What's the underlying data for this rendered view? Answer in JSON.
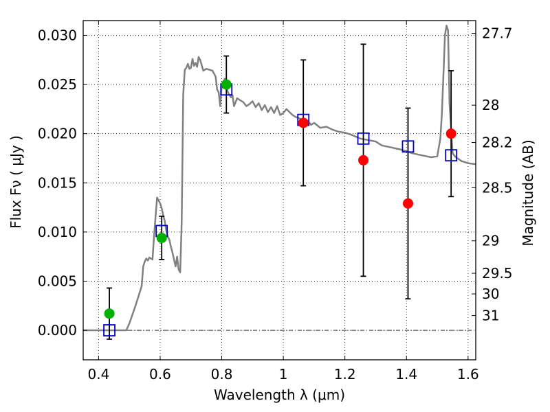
{
  "chart_data": {
    "type": "scatter",
    "xlabel": "Wavelength  λ (μm)",
    "ylabel": "Flux  Fν  ( μJy )",
    "ylabel_right": "Magnitude (AB)",
    "xlim": [
      0.35,
      1.625
    ],
    "ylim": [
      -0.003,
      0.0315
    ],
    "grid": true,
    "x_ticks": [
      0.4,
      0.6,
      0.8,
      1.0,
      1.2,
      1.4,
      1.6
    ],
    "x_tick_labels": [
      "0.4",
      "0.6",
      "0.8",
      "1",
      "1.2",
      "1.4",
      "1.6"
    ],
    "y_ticks": [
      0.0,
      0.005,
      0.01,
      0.015,
      0.02,
      0.025,
      0.03
    ],
    "y_tick_labels": [
      "0.000",
      "0.005",
      "0.010",
      "0.015",
      "0.020",
      "0.025",
      "0.030"
    ],
    "right_ticks": [
      {
        "label": "27.7",
        "flux": 0.0302
      },
      {
        "label": "28",
        "flux": 0.0229
      },
      {
        "label": "28.2",
        "flux": 0.0191
      },
      {
        "label": "28.5",
        "flux": 0.0145
      },
      {
        "label": "29",
        "flux": 0.0091
      },
      {
        "label": "29.5",
        "flux": 0.0058
      },
      {
        "label": "30",
        "flux": 0.0037
      },
      {
        "label": "31",
        "flux": 0.0015
      }
    ],
    "zero_line": 0.0,
    "colors": {
      "model": "#808080",
      "green": "#00b000",
      "red": "#ff0000",
      "square": "#0000cc",
      "errorbar": "#000000"
    },
    "model_spectrum": {
      "x": [
        0.35,
        0.49,
        0.5,
        0.52,
        0.535,
        0.54,
        0.545,
        0.55,
        0.555,
        0.56,
        0.565,
        0.575,
        0.58,
        0.585,
        0.59,
        0.6,
        0.605,
        0.61,
        0.615,
        0.62,
        0.625,
        0.63,
        0.635,
        0.64,
        0.645,
        0.65,
        0.655,
        0.66,
        0.665,
        0.67,
        0.675,
        0.68,
        0.685,
        0.69,
        0.695,
        0.7,
        0.705,
        0.71,
        0.715,
        0.72,
        0.725,
        0.73,
        0.74,
        0.75,
        0.76,
        0.77,
        0.78,
        0.785,
        0.79,
        0.795,
        0.8,
        0.81,
        0.82,
        0.83,
        0.835,
        0.84,
        0.85,
        0.86,
        0.87,
        0.88,
        0.89,
        0.9,
        0.91,
        0.92,
        0.93,
        0.94,
        0.95,
        0.96,
        0.97,
        0.98,
        0.99,
        1.0,
        1.01,
        1.02,
        1.03,
        1.04,
        1.05,
        1.06,
        1.07,
        1.08,
        1.09,
        1.1,
        1.12,
        1.14,
        1.16,
        1.18,
        1.2,
        1.22,
        1.25,
        1.3,
        1.32,
        1.35,
        1.38,
        1.4,
        1.42,
        1.45,
        1.48,
        1.5,
        1.51,
        1.515,
        1.52,
        1.525,
        1.53,
        1.535,
        1.54,
        1.55,
        1.56,
        1.57,
        1.58,
        1.6,
        1.625
      ],
      "y": [
        0.0,
        0.0,
        0.0007,
        0.0025,
        0.004,
        0.0045,
        0.0065,
        0.007,
        0.0073,
        0.0071,
        0.0074,
        0.0072,
        0.0095,
        0.0115,
        0.0135,
        0.0129,
        0.0124,
        0.0117,
        0.0111,
        0.0101,
        0.0095,
        0.0092,
        0.0085,
        0.0079,
        0.0072,
        0.0065,
        0.0075,
        0.0062,
        0.0059,
        0.011,
        0.024,
        0.0265,
        0.0267,
        0.0271,
        0.0266,
        0.0267,
        0.0276,
        0.0269,
        0.0272,
        0.0268,
        0.0278,
        0.0275,
        0.0264,
        0.0266,
        0.0265,
        0.0264,
        0.0258,
        0.0245,
        0.0242,
        0.0228,
        0.0248,
        0.0256,
        0.0242,
        0.0237,
        0.0239,
        0.0228,
        0.0236,
        0.0234,
        0.0232,
        0.0228,
        0.023,
        0.0233,
        0.0227,
        0.0231,
        0.0224,
        0.0229,
        0.0222,
        0.0227,
        0.0221,
        0.0228,
        0.0219,
        0.0221,
        0.0225,
        0.0222,
        0.0219,
        0.0217,
        0.0216,
        0.0214,
        0.0212,
        0.0213,
        0.0209,
        0.0211,
        0.0206,
        0.0207,
        0.0204,
        0.0202,
        0.0201,
        0.0199,
        0.0195,
        0.0192,
        0.0188,
        0.0186,
        0.0184,
        0.0182,
        0.018,
        0.0178,
        0.0176,
        0.0177,
        0.0195,
        0.022,
        0.026,
        0.03,
        0.031,
        0.0305,
        0.023,
        0.018,
        0.0176,
        0.0174,
        0.0172,
        0.017,
        0.0169
      ]
    },
    "green_points": [
      {
        "x": 0.435,
        "y": 0.0017,
        "err": 0.0026
      },
      {
        "x": 0.605,
        "y": 0.0094,
        "err": 0.0022
      },
      {
        "x": 0.815,
        "y": 0.025,
        "err": 0.0029
      }
    ],
    "red_points": [
      {
        "x": 1.065,
        "y": 0.0211,
        "err": 0.0064
      },
      {
        "x": 1.26,
        "y": 0.0173,
        "err": 0.0118
      },
      {
        "x": 1.405,
        "y": 0.0129,
        "err": 0.0097
      },
      {
        "x": 1.545,
        "y": 0.02,
        "err": 0.0064
      }
    ],
    "model_photometry": [
      {
        "x": 0.435,
        "y": 0.0
      },
      {
        "x": 0.605,
        "y": 0.0101
      },
      {
        "x": 0.815,
        "y": 0.0245
      },
      {
        "x": 1.065,
        "y": 0.0214
      },
      {
        "x": 1.26,
        "y": 0.0195
      },
      {
        "x": 1.405,
        "y": 0.0187
      },
      {
        "x": 1.545,
        "y": 0.0178
      }
    ]
  }
}
